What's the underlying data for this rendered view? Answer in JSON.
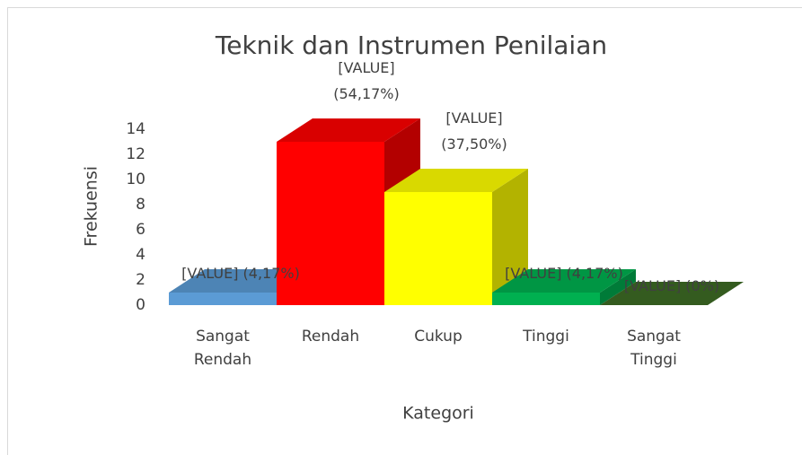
{
  "chart_data": {
    "type": "bar3d",
    "title": "Teknik dan Instrumen Penilaian",
    "x_label": "Kategori",
    "y_label": "Frekuensi",
    "categories": [
      "Sangat Rendah",
      "Rendah",
      "Cukup",
      "Tinggi",
      "Sangat Tinggi"
    ],
    "values": [
      1,
      13,
      9,
      1,
      0
    ],
    "value_labels": [
      "[VALUE] (4,17%)",
      "[VALUE] (54,17%)",
      "[VALUE] (37,50%)",
      "[VALUE] (4,17%)",
      "[VALUE] (0%)"
    ],
    "colors": [
      "#5b9bd5",
      "#ff0000",
      "#ffff00",
      "#00b050",
      "#3d6b24"
    ],
    "ylim": [
      0,
      14
    ],
    "yticks": [
      0,
      2,
      4,
      6,
      8,
      10,
      12,
      14
    ],
    "grid": false
  }
}
